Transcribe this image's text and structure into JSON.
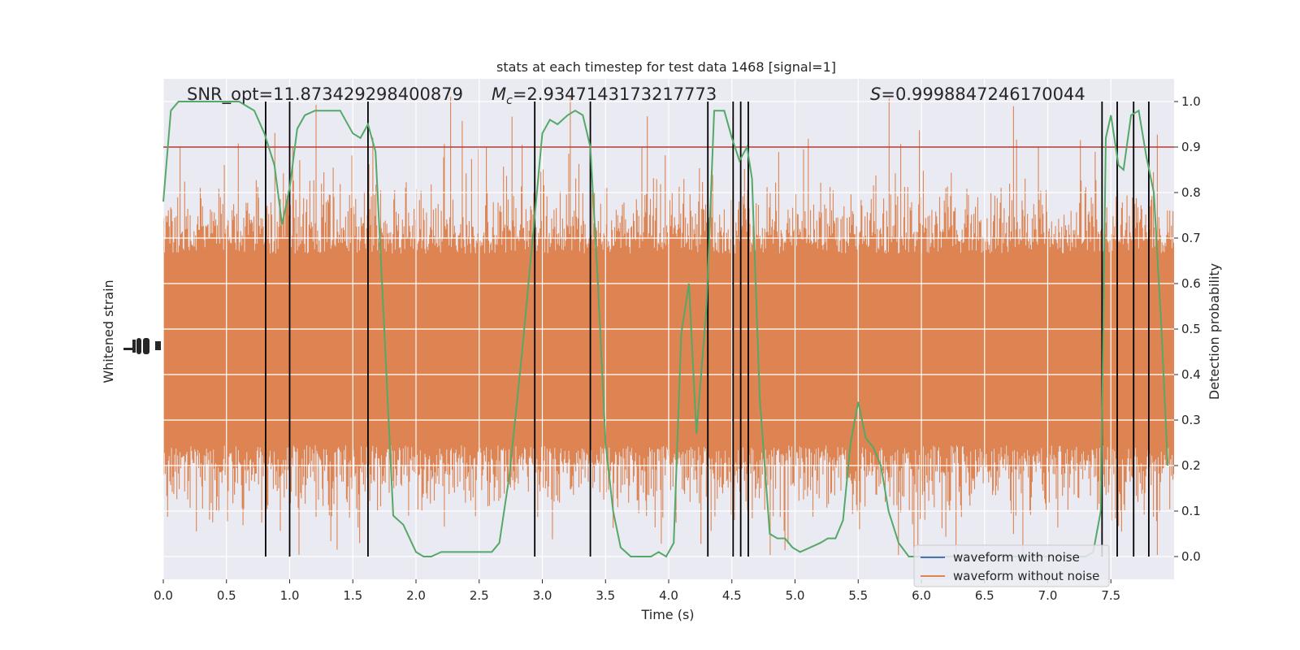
{
  "chart_data": {
    "type": "line",
    "title": "stats at each timestep for test data 1468 [signal=1]",
    "xlabel": "Time (s)",
    "ylabel_left": "Whitened strain",
    "ylabel_right": "Detection probability",
    "xlim": [
      0,
      8.0
    ],
    "ylim_right": [
      -0.05,
      1.05
    ],
    "x_ticks": [
      "0.0",
      "0.5",
      "1.0",
      "1.5",
      "2.0",
      "2.5",
      "3.0",
      "3.5",
      "4.0",
      "4.5",
      "5.0",
      "5.5",
      "6.0",
      "6.5",
      "7.0",
      "7.5"
    ],
    "y_ticks_right": [
      "0.0",
      "0.1",
      "0.2",
      "0.3",
      "0.4",
      "0.5",
      "0.6",
      "0.7",
      "0.8",
      "0.9",
      "1.0"
    ],
    "grid": true,
    "threshold": 0.9,
    "threshold_color": "#b03a2e",
    "annotations": {
      "snr": "SNR_opt=11.873429298400879",
      "mc_symbol": "M",
      "mc_sub": "c",
      "mc_value": "=2.9347143173217773",
      "s_symbol": "S",
      "s_value": "=0.9998847246170044"
    },
    "legend": {
      "position": "lower-right",
      "entries": [
        {
          "label": "waveform with noise",
          "color": "#4c72b0"
        },
        {
          "label": "waveform without noise",
          "color": "#dd8452"
        }
      ]
    },
    "strain_series_color": "#dd8452",
    "probability_series": {
      "color": "#55a868",
      "x": [
        0.0,
        0.06,
        0.12,
        0.24,
        0.36,
        0.48,
        0.6,
        0.66,
        0.72,
        0.8,
        0.88,
        0.94,
        1.0,
        1.06,
        1.12,
        1.2,
        1.3,
        1.4,
        1.5,
        1.56,
        1.62,
        1.68,
        1.74,
        1.82,
        1.9,
        2.0,
        2.06,
        2.12,
        2.2,
        2.3,
        2.4,
        2.5,
        2.6,
        2.66,
        2.74,
        2.84,
        2.94,
        3.0,
        3.06,
        3.12,
        3.2,
        3.26,
        3.32,
        3.38,
        3.44,
        3.5,
        3.56,
        3.62,
        3.7,
        3.78,
        3.86,
        3.92,
        3.98,
        4.04,
        4.1,
        4.16,
        4.22,
        4.3,
        4.36,
        4.44,
        4.5,
        4.56,
        4.62,
        4.66,
        4.72,
        4.8,
        4.86,
        4.92,
        4.98,
        5.04,
        5.12,
        5.2,
        5.26,
        5.32,
        5.38,
        5.44,
        5.5,
        5.56,
        5.62,
        5.68,
        5.74,
        5.82,
        5.9,
        6.0,
        6.2,
        6.6,
        7.0,
        7.3,
        7.36,
        7.42,
        7.46,
        7.5,
        7.56,
        7.6,
        7.66,
        7.72,
        7.78,
        7.84,
        7.9,
        7.95
      ],
      "y": [
        0.78,
        0.98,
        1.0,
        1.0,
        1.0,
        1.0,
        1.0,
        0.99,
        0.98,
        0.93,
        0.86,
        0.73,
        0.81,
        0.94,
        0.97,
        0.98,
        0.98,
        0.98,
        0.93,
        0.92,
        0.95,
        0.89,
        0.55,
        0.09,
        0.07,
        0.01,
        0.0,
        0.0,
        0.01,
        0.01,
        0.01,
        0.01,
        0.01,
        0.03,
        0.18,
        0.45,
        0.75,
        0.93,
        0.96,
        0.95,
        0.97,
        0.98,
        0.97,
        0.9,
        0.6,
        0.25,
        0.1,
        0.02,
        0.0,
        0.0,
        0.0,
        0.01,
        0.0,
        0.03,
        0.49,
        0.6,
        0.27,
        0.55,
        0.98,
        0.98,
        0.92,
        0.87,
        0.9,
        0.83,
        0.35,
        0.05,
        0.04,
        0.04,
        0.02,
        0.01,
        0.02,
        0.03,
        0.04,
        0.04,
        0.08,
        0.25,
        0.34,
        0.26,
        0.24,
        0.2,
        0.1,
        0.03,
        0.0,
        0.0,
        0.0,
        0.0,
        0.0,
        0.0,
        0.01,
        0.1,
        0.92,
        0.97,
        0.86,
        0.85,
        0.97,
        0.98,
        0.88,
        0.8,
        0.5,
        0.2
      ]
    },
    "vertical_lines_x": [
      0.81,
      1.0,
      1.62,
      2.94,
      3.38,
      4.31,
      4.51,
      4.57,
      4.63,
      7.43,
      7.55,
      7.68,
      7.8
    ]
  }
}
